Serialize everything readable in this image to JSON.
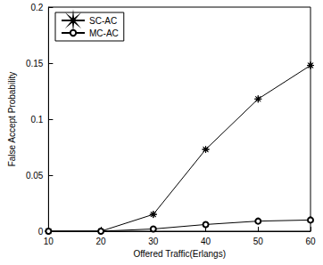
{
  "chart_data": {
    "type": "line",
    "x_label": "Offered Traffic(Erlangs)",
    "y_label": "False Accept Probability",
    "x": [
      10,
      20,
      30,
      40,
      50,
      60
    ],
    "series": [
      {
        "name": "SC-AC",
        "color": "#000000",
        "marker": "star",
        "values": [
          0,
          0,
          0.015,
          0.073,
          0.118,
          0.148
        ]
      },
      {
        "name": "MC-AC",
        "color": "#000000",
        "marker": "circle",
        "values": [
          0,
          0,
          0.002,
          0.006,
          0.009,
          0.01
        ]
      }
    ],
    "xlim": [
      10,
      60
    ],
    "xticks": [
      10,
      20,
      30,
      40,
      50,
      60
    ],
    "ylim": [
      0,
      0.2
    ],
    "yticks": [
      0,
      0.05,
      0.1,
      0.15,
      0.2
    ],
    "grid": false,
    "legend": "upper left"
  }
}
